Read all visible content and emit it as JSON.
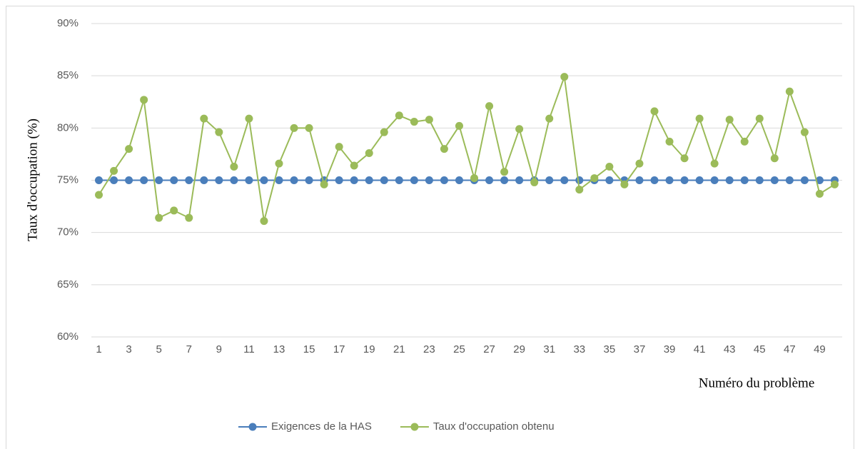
{
  "chart_data": {
    "type": "line",
    "x_label": "Numéro du problème",
    "y_label": "Taux d'occupation (%)",
    "categories": [
      1,
      null,
      3,
      null,
      5,
      null,
      7,
      null,
      9,
      null,
      11,
      null,
      13,
      null,
      15,
      null,
      17,
      null,
      19,
      null,
      21,
      null,
      23,
      null,
      25,
      null,
      27,
      null,
      29,
      null,
      31,
      null,
      33,
      null,
      35,
      null,
      37,
      null,
      39,
      null,
      41,
      null,
      43,
      null,
      45,
      null,
      47,
      null,
      49,
      null
    ],
    "series": [
      {
        "name": "Exigences de la HAS",
        "color": "#4a7ebb",
        "values": [
          75,
          75,
          75,
          75,
          75,
          75,
          75,
          75,
          75,
          75,
          75,
          75,
          75,
          75,
          75,
          75,
          75,
          75,
          75,
          75,
          75,
          75,
          75,
          75,
          75,
          75,
          75,
          75,
          75,
          75,
          75,
          75,
          75,
          75,
          75,
          75,
          75,
          75,
          75,
          75,
          75,
          75,
          75,
          75,
          75,
          75,
          75,
          75,
          75,
          75
        ]
      },
      {
        "name": "Taux d'occupation obtenu",
        "color": "#9bbb59",
        "values": [
          73.6,
          75.9,
          78.0,
          82.7,
          71.4,
          72.1,
          71.4,
          80.9,
          79.6,
          76.3,
          80.9,
          71.1,
          76.6,
          80.0,
          80.0,
          74.6,
          78.2,
          76.4,
          77.6,
          79.6,
          81.2,
          80.6,
          80.8,
          78.0,
          80.2,
          75.2,
          82.1,
          75.8,
          79.9,
          74.8,
          80.9,
          84.9,
          74.1,
          75.2,
          76.3,
          74.6,
          76.6,
          81.6,
          78.7,
          77.1,
          80.9,
          76.6,
          80.8,
          78.7,
          80.9,
          77.1,
          83.5,
          79.6,
          73.7,
          74.6
        ]
      }
    ],
    "ylim": [
      60,
      90
    ],
    "yticks": [
      {
        "value": 60,
        "label": "60%"
      },
      {
        "value": 65,
        "label": "65%"
      },
      {
        "value": 70,
        "label": "70%"
      },
      {
        "value": 75,
        "label": "75%"
      },
      {
        "value": 80,
        "label": "80%"
      },
      {
        "value": 85,
        "label": "85%"
      },
      {
        "value": 90,
        "label": "90%"
      }
    ],
    "grid": true,
    "legend": "bottom"
  }
}
